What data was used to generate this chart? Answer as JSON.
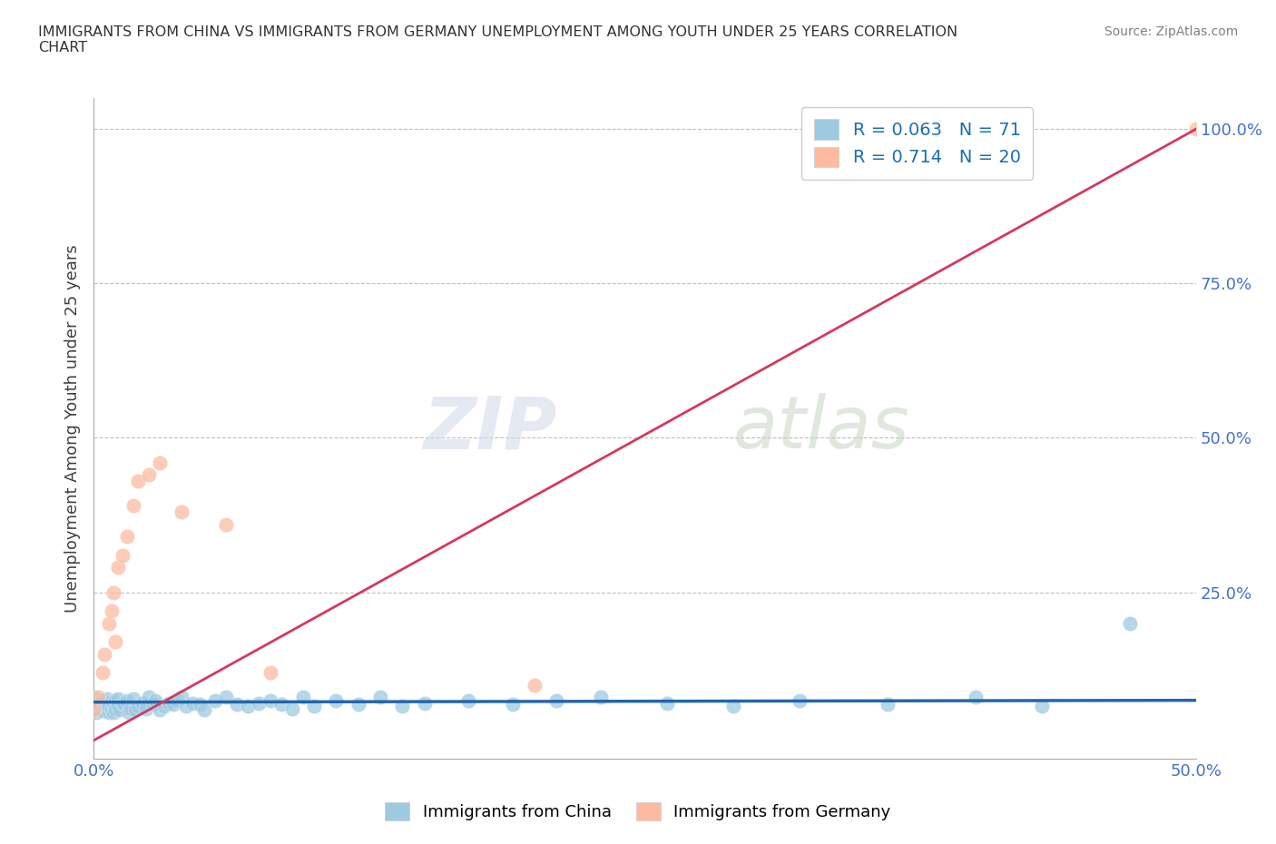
{
  "title": "IMMIGRANTS FROM CHINA VS IMMIGRANTS FROM GERMANY UNEMPLOYMENT AMONG YOUTH UNDER 25 YEARS CORRELATION\nCHART",
  "source_text": "Source: ZipAtlas.com",
  "ylabel": "Unemployment Among Youth under 25 years",
  "xlim": [
    0.0,
    0.5
  ],
  "ylim": [
    -0.05,
    1.05
  ],
  "china_color": "#9ecae1",
  "germany_color": "#fcbba1",
  "china_line_color": "#2166ac",
  "germany_line_color": "#d6385e",
  "R_china": 0.063,
  "N_china": 71,
  "R_germany": 0.714,
  "N_germany": 20,
  "watermark_zip": "ZIP",
  "watermark_atlas": "atlas",
  "legend_color": "#1a6faf",
  "china_x": [
    0.0,
    0.0,
    0.001,
    0.002,
    0.003,
    0.004,
    0.004,
    0.005,
    0.005,
    0.006,
    0.006,
    0.007,
    0.007,
    0.008,
    0.008,
    0.009,
    0.009,
    0.01,
    0.01,
    0.011,
    0.011,
    0.012,
    0.013,
    0.014,
    0.015,
    0.016,
    0.017,
    0.018,
    0.019,
    0.02,
    0.022,
    0.024,
    0.025,
    0.027,
    0.028,
    0.03,
    0.032,
    0.034,
    0.036,
    0.038,
    0.04,
    0.042,
    0.045,
    0.048,
    0.05,
    0.055,
    0.06,
    0.065,
    0.07,
    0.075,
    0.08,
    0.085,
    0.09,
    0.095,
    0.1,
    0.11,
    0.12,
    0.13,
    0.14,
    0.15,
    0.17,
    0.19,
    0.21,
    0.23,
    0.26,
    0.29,
    0.32,
    0.36,
    0.4,
    0.43,
    0.47
  ],
  "china_y": [
    0.06,
    0.08,
    0.055,
    0.07,
    0.065,
    0.075,
    0.058,
    0.068,
    0.072,
    0.062,
    0.078,
    0.055,
    0.066,
    0.073,
    0.06,
    0.068,
    0.055,
    0.075,
    0.062,
    0.078,
    0.065,
    0.06,
    0.07,
    0.068,
    0.075,
    0.055,
    0.062,
    0.078,
    0.06,
    0.065,
    0.07,
    0.062,
    0.08,
    0.068,
    0.075,
    0.06,
    0.065,
    0.07,
    0.068,
    0.075,
    0.08,
    0.065,
    0.07,
    0.068,
    0.06,
    0.075,
    0.08,
    0.068,
    0.065,
    0.07,
    0.075,
    0.068,
    0.062,
    0.08,
    0.065,
    0.075,
    0.068,
    0.08,
    0.065,
    0.07,
    0.075,
    0.068,
    0.075,
    0.08,
    0.07,
    0.065,
    0.075,
    0.068,
    0.08,
    0.065,
    0.2
  ],
  "germany_x": [
    0.0,
    0.002,
    0.004,
    0.005,
    0.007,
    0.008,
    0.009,
    0.01,
    0.011,
    0.013,
    0.015,
    0.018,
    0.02,
    0.025,
    0.03,
    0.04,
    0.06,
    0.08,
    0.2,
    0.5
  ],
  "germany_y": [
    0.06,
    0.08,
    0.12,
    0.15,
    0.2,
    0.22,
    0.25,
    0.17,
    0.29,
    0.31,
    0.34,
    0.39,
    0.43,
    0.44,
    0.46,
    0.38,
    0.36,
    0.12,
    0.1,
    1.0
  ],
  "germany_line_x0": 0.0,
  "germany_line_y0": 0.01,
  "germany_line_x1": 0.5,
  "germany_line_y1": 1.0,
  "china_line_y": 0.072
}
